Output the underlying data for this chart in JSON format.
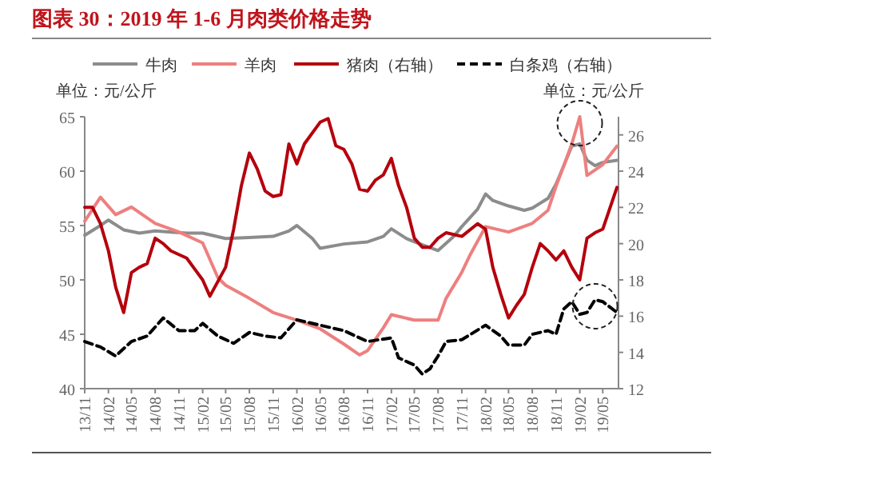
{
  "chart_data": {
    "type": "line",
    "title": "图表 30：2019 年 1-6 月肉类价格走势",
    "annotations": [
      "单位：元/公斤",
      "单位：元/公斤"
    ],
    "legend": "top",
    "xlim": [
      "2013-11",
      "2019-07"
    ],
    "xticks": [
      {
        "value": "2013-11",
        "label": "13/11"
      },
      {
        "value": "2014-02",
        "label": "14/02"
      },
      {
        "value": "2014-05",
        "label": "14/05"
      },
      {
        "value": "2014-08",
        "label": "14/08"
      },
      {
        "value": "2014-11",
        "label": "14/11"
      },
      {
        "value": "2015-02",
        "label": "15/02"
      },
      {
        "value": "2015-05",
        "label": "15/05"
      },
      {
        "value": "2015-08",
        "label": "15/08"
      },
      {
        "value": "2015-11",
        "label": "15/11"
      },
      {
        "value": "2016-02",
        "label": "16/02"
      },
      {
        "value": "2016-05",
        "label": "16/05"
      },
      {
        "value": "2016-08",
        "label": "16/08"
      },
      {
        "value": "2016-11",
        "label": "16/11"
      },
      {
        "value": "2017-02",
        "label": "17/02"
      },
      {
        "value": "2017-05",
        "label": "17/05"
      },
      {
        "value": "2017-08",
        "label": "17/08"
      },
      {
        "value": "2017-11",
        "label": "17/11"
      },
      {
        "value": "2018-02",
        "label": "18/02"
      },
      {
        "value": "2018-05",
        "label": "18/05"
      },
      {
        "value": "2018-08",
        "label": "18/08"
      },
      {
        "value": "2018-11",
        "label": "18/11"
      },
      {
        "value": "2019-02",
        "label": "19/02"
      },
      {
        "value": "2019-05",
        "label": "19/05"
      }
    ],
    "ylim": [
      40,
      65
    ],
    "yticks": [
      40,
      45,
      50,
      55,
      60,
      65
    ],
    "y2lim": [
      12,
      27
    ],
    "y2ticks": [
      12,
      14,
      16,
      18,
      20,
      22,
      24,
      26
    ],
    "series": [
      {
        "name": "牛肉",
        "color": "#8c8c8c",
        "x": [
          "2013-11",
          "2014-01",
          "2014-02",
          "2014-04",
          "2014-06",
          "2014-08",
          "2014-10",
          "2014-12",
          "2015-02",
          "2015-05",
          "2015-08",
          "2015-11",
          "2016-01",
          "2016-02",
          "2016-04",
          "2016-05",
          "2016-08",
          "2016-11",
          "2017-01",
          "2017-02",
          "2017-04",
          "2017-05",
          "2017-08",
          "2017-10",
          "2017-11",
          "2018-01",
          "2018-02",
          "2018-03",
          "2018-05",
          "2018-07",
          "2018-08",
          "2018-10",
          "2018-11",
          "2018-12",
          "2019-01",
          "2019-02",
          "2019-03",
          "2019-04",
          "2019-05",
          "2019-06-25"
        ],
        "values": [
          54.1,
          55.0,
          55.5,
          54.6,
          54.3,
          54.5,
          54.4,
          54.3,
          54.3,
          53.8,
          53.9,
          54.0,
          54.5,
          55.0,
          53.8,
          52.9,
          53.3,
          53.5,
          54.0,
          54.7,
          53.8,
          53.5,
          52.7,
          54.0,
          54.9,
          56.5,
          57.9,
          57.3,
          56.8,
          56.4,
          56.6,
          57.5,
          58.8,
          60.5,
          62.3,
          62.5,
          61.0,
          60.5,
          60.8,
          61.0
        ]
      },
      {
        "name": "羊肉",
        "color": "#ee7f7f",
        "x": [
          "2013-11",
          "2014-01",
          "2014-03",
          "2014-05",
          "2014-08",
          "2014-11",
          "2015-02",
          "2015-04",
          "2015-05",
          "2015-08",
          "2015-11",
          "2016-02",
          "2016-05",
          "2016-08",
          "2016-10",
          "2016-11",
          "2017-01",
          "2017-02",
          "2017-05",
          "2017-08",
          "2017-09",
          "2017-11",
          "2017-12",
          "2018-02",
          "2018-05",
          "2018-08",
          "2018-10",
          "2018-11",
          "2018-12",
          "2019-01",
          "2019-02",
          "2019-03",
          "2019-04",
          "2019-05",
          "2019-06-25"
        ],
        "values": [
          55.4,
          57.6,
          56.0,
          56.7,
          55.2,
          54.4,
          53.4,
          50.2,
          49.5,
          48.3,
          47.0,
          46.3,
          45.5,
          44.1,
          43.1,
          43.5,
          45.6,
          46.8,
          46.3,
          46.3,
          48.3,
          50.7,
          52.2,
          54.9,
          54.4,
          55.2,
          56.4,
          58.6,
          60.5,
          62.5,
          65.0,
          59.6,
          60.1,
          60.6,
          62.3
        ]
      },
      {
        "name": "猪肉（右轴）",
        "color": "#b5000c",
        "axis": "y2",
        "x": [
          "2013-11",
          "2013-12",
          "2014-01",
          "2014-02",
          "2014-03",
          "2014-04",
          "2014-05",
          "2014-06",
          "2014-07",
          "2014-08",
          "2014-09",
          "2014-10",
          "2014-12",
          "2015-01",
          "2015-02",
          "2015-03",
          "2015-05",
          "2015-06",
          "2015-07",
          "2015-08",
          "2015-09",
          "2015-10",
          "2015-11",
          "2015-12",
          "2016-01",
          "2016-02",
          "2016-03",
          "2016-05",
          "2016-06",
          "2016-07",
          "2016-08",
          "2016-09",
          "2016-10",
          "2016-11",
          "2016-12",
          "2017-01",
          "2017-02",
          "2017-03",
          "2017-04",
          "2017-05",
          "2017-06",
          "2017-07",
          "2017-08",
          "2017-09",
          "2017-11",
          "2018-01",
          "2018-02",
          "2018-03",
          "2018-04",
          "2018-05",
          "2018-06",
          "2018-07",
          "2018-08",
          "2018-09",
          "2018-10",
          "2018-11",
          "2018-12",
          "2019-01",
          "2019-02",
          "2019-03",
          "2019-04",
          "2019-05",
          "2019-06-25"
        ],
        "values": [
          22.0,
          22.0,
          21.1,
          19.6,
          17.6,
          16.2,
          18.4,
          18.7,
          18.9,
          20.3,
          20.0,
          19.6,
          19.2,
          18.6,
          18.0,
          17.1,
          18.7,
          20.8,
          23.2,
          25.0,
          24.1,
          22.9,
          22.6,
          22.7,
          25.5,
          24.4,
          25.5,
          26.7,
          26.9,
          25.4,
          25.2,
          24.4,
          23.0,
          22.9,
          23.5,
          23.8,
          24.7,
          23.2,
          22.0,
          20.3,
          19.8,
          19.8,
          20.3,
          20.6,
          20.4,
          21.1,
          20.8,
          18.7,
          17.2,
          15.9,
          16.6,
          17.2,
          18.7,
          20.0,
          19.6,
          19.1,
          19.6,
          18.7,
          18.0,
          20.3,
          20.6,
          20.8,
          23.1
        ]
      },
      {
        "name": "白条鸡（右轴）",
        "color": "#000000",
        "axis": "y2",
        "line_style": "dashed",
        "x": [
          "2013-11",
          "2014-01",
          "2014-03",
          "2014-05",
          "2014-07",
          "2014-09",
          "2014-11",
          "2015-01",
          "2015-02",
          "2015-04",
          "2015-06",
          "2015-08",
          "2015-10",
          "2015-12",
          "2016-02",
          "2016-05",
          "2016-08",
          "2016-11",
          "2017-02",
          "2017-03",
          "2017-05",
          "2017-06",
          "2017-07",
          "2017-08",
          "2017-09",
          "2017-11",
          "2018-02",
          "2018-04",
          "2018-05",
          "2018-07",
          "2018-08",
          "2018-10",
          "2018-11",
          "2018-12",
          "2019-01",
          "2019-02",
          "2019-03",
          "2019-04",
          "2019-05",
          "2019-06-25"
        ],
        "values": [
          14.6,
          14.3,
          13.8,
          14.6,
          14.9,
          15.9,
          15.2,
          15.2,
          15.6,
          14.9,
          14.5,
          15.1,
          14.9,
          14.8,
          15.8,
          15.5,
          15.2,
          14.6,
          14.8,
          13.7,
          13.3,
          12.8,
          13.1,
          13.8,
          14.6,
          14.7,
          15.5,
          14.9,
          14.4,
          14.4,
          15.0,
          15.2,
          15.0,
          16.4,
          16.8,
          16.1,
          16.2,
          16.9,
          16.8,
          16.2
        ]
      }
    ]
  }
}
